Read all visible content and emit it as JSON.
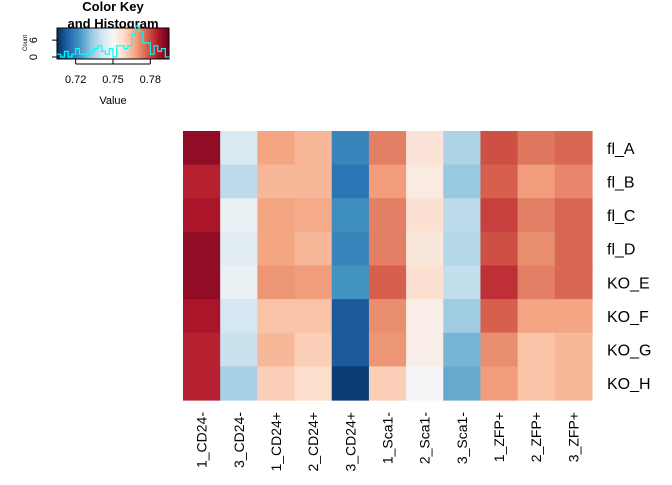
{
  "chart_data": {
    "type": "heatmap",
    "rows": [
      "fl_A",
      "fl_B",
      "fl_C",
      "fl_D",
      "KO_E",
      "KO_F",
      "KO_G",
      "KO_H"
    ],
    "columns": [
      "1_CD24-",
      "3_CD24-",
      "1_CD24+",
      "2_CD24+",
      "3_CD24+",
      "1_Sca1-",
      "2_Sca1-",
      "3_Sca1-",
      "1_ZFP+",
      "2_ZFP+",
      "3_ZFP+"
    ],
    "values": [
      [
        0.79,
        0.743,
        0.768,
        0.765,
        0.72,
        0.773,
        0.756,
        0.736,
        0.779,
        0.774,
        0.776
      ],
      [
        0.785,
        0.738,
        0.765,
        0.765,
        0.717,
        0.769,
        0.754,
        0.733,
        0.777,
        0.769,
        0.772
      ],
      [
        0.787,
        0.747,
        0.768,
        0.767,
        0.722,
        0.773,
        0.757,
        0.738,
        0.781,
        0.773,
        0.776
      ],
      [
        0.79,
        0.745,
        0.768,
        0.765,
        0.72,
        0.773,
        0.755,
        0.737,
        0.779,
        0.771,
        0.776
      ],
      [
        0.79,
        0.747,
        0.77,
        0.769,
        0.723,
        0.777,
        0.757,
        0.739,
        0.783,
        0.773,
        0.776
      ],
      [
        0.787,
        0.742,
        0.763,
        0.763,
        0.712,
        0.771,
        0.753,
        0.734,
        0.777,
        0.768,
        0.768
      ],
      [
        0.785,
        0.74,
        0.765,
        0.761,
        0.712,
        0.77,
        0.753,
        0.729,
        0.771,
        0.763,
        0.765
      ],
      [
        0.785,
        0.735,
        0.761,
        0.758,
        0.707,
        0.761,
        0.749,
        0.727,
        0.769,
        0.763,
        0.765
      ]
    ],
    "color_scale": {
      "low": "#053061",
      "mid": "#f7f7f7",
      "high": "#67001f",
      "range": [
        0.705,
        0.795
      ],
      "palette": "RdBu (reversed)"
    },
    "color_key": {
      "title": "Color Key\nand Histogram",
      "xlabel": "Value",
      "ylabel": "Count",
      "x_ticks": [
        0.72,
        0.75,
        0.78
      ],
      "y_ticks": [
        0,
        6
      ],
      "histogram_color": "#00ffff"
    }
  }
}
